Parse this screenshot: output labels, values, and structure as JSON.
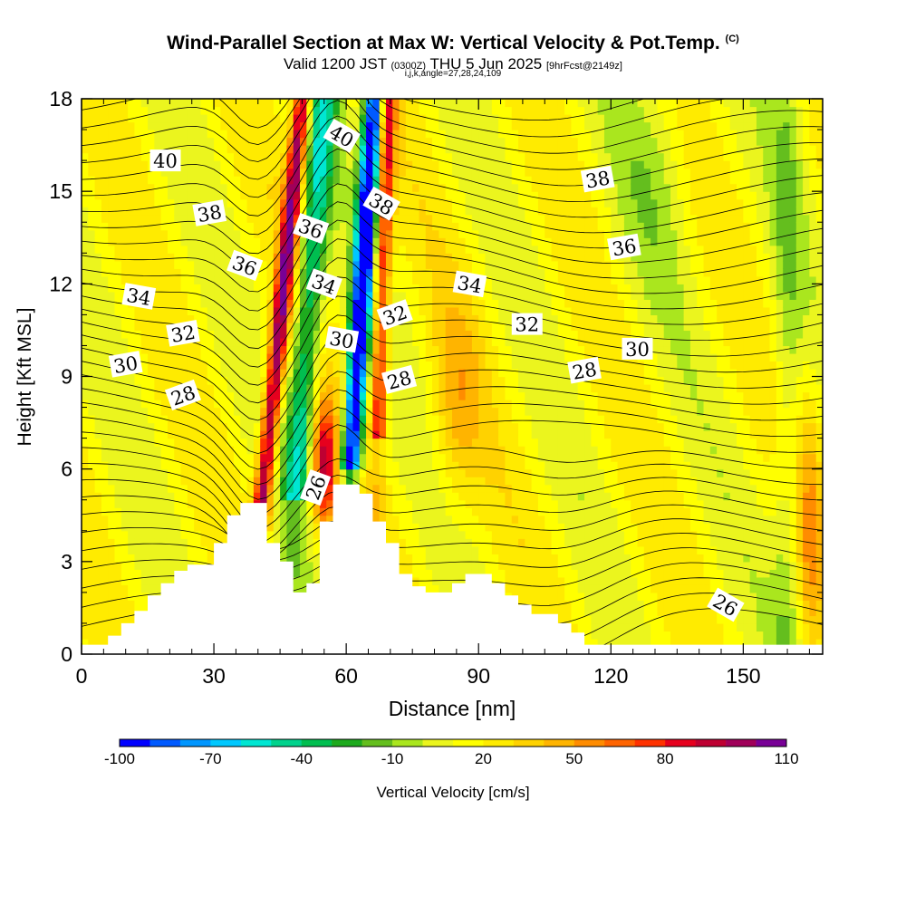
{
  "header": {
    "title": "Wind-Parallel Section at Max W: Vertical Velocity & Pot.Temp.",
    "copyright": "(C)",
    "valid_prefix": "Valid 1200 JST",
    "valid_utc": "(0300Z)",
    "valid_date": "THU 5 Jun 2025",
    "forecast": "[9hrFcst@2149z]",
    "indices": "i,j,k,angle=27,28,24,109"
  },
  "chart_data": {
    "type": "heatmap",
    "xlabel": "Distance [nm]",
    "ylabel": "Height [Kft MSL]",
    "xlim": [
      0,
      168
    ],
    "ylim": [
      0,
      18
    ],
    "x_ticks": [
      0,
      30,
      60,
      90,
      120,
      150
    ],
    "y_ticks": [
      0,
      3,
      6,
      9,
      12,
      15,
      18
    ],
    "colorbar": {
      "label": "Vertical Velocity [cm/s]",
      "tick_labels": [
        "-100",
        "-70",
        "-40",
        "-10",
        "20",
        "50",
        "80",
        "110"
      ],
      "colors": [
        "#0000ff",
        "#005aff",
        "#0096ff",
        "#00c8ff",
        "#00e6d2",
        "#00d28c",
        "#00be50",
        "#1eaa1e",
        "#64be1e",
        "#aae61e",
        "#ebf51e",
        "#ffff00",
        "#ffeb00",
        "#ffd200",
        "#ffb400",
        "#ff8c00",
        "#ff6400",
        "#ff3200",
        "#e6001e",
        "#be0032",
        "#a0005a",
        "#780096"
      ]
    },
    "terrain_profile": [
      [
        0,
        0.3
      ],
      [
        6,
        0.3
      ],
      [
        6,
        0.6
      ],
      [
        9,
        0.6
      ],
      [
        9,
        1.0
      ],
      [
        12,
        1.0
      ],
      [
        12,
        1.4
      ],
      [
        15,
        1.4
      ],
      [
        15,
        1.9
      ],
      [
        18,
        1.9
      ],
      [
        18,
        2.3
      ],
      [
        21,
        2.3
      ],
      [
        21,
        2.7
      ],
      [
        24,
        2.7
      ],
      [
        24,
        2.9
      ],
      [
        30,
        2.9
      ],
      [
        30,
        3.6
      ],
      [
        33,
        3.6
      ],
      [
        33,
        4.5
      ],
      [
        36,
        4.5
      ],
      [
        36,
        4.9
      ],
      [
        42,
        4.9
      ],
      [
        42,
        3.6
      ],
      [
        45,
        3.6
      ],
      [
        45,
        3.0
      ],
      [
        48,
        3.0
      ],
      [
        48,
        2.0
      ],
      [
        51,
        2.0
      ],
      [
        51,
        2.3
      ],
      [
        54,
        2.3
      ],
      [
        54,
        4.3
      ],
      [
        57,
        4.3
      ],
      [
        57,
        5.5
      ],
      [
        63,
        5.5
      ],
      [
        63,
        5.2
      ],
      [
        66,
        5.2
      ],
      [
        66,
        4.3
      ],
      [
        69,
        4.3
      ],
      [
        69,
        3.6
      ],
      [
        72,
        3.6
      ],
      [
        72,
        2.6
      ],
      [
        75,
        2.6
      ],
      [
        75,
        2.2
      ],
      [
        78,
        2.2
      ],
      [
        78,
        2.0
      ],
      [
        84,
        2.0
      ],
      [
        84,
        2.3
      ],
      [
        87,
        2.3
      ],
      [
        87,
        2.6
      ],
      [
        93,
        2.6
      ],
      [
        93,
        2.3
      ],
      [
        96,
        2.3
      ],
      [
        96,
        1.9
      ],
      [
        99,
        1.9
      ],
      [
        99,
        1.6
      ],
      [
        102,
        1.6
      ],
      [
        102,
        1.3
      ],
      [
        108,
        1.3
      ],
      [
        108,
        1.0
      ],
      [
        111,
        1.0
      ],
      [
        111,
        0.7
      ],
      [
        114,
        0.7
      ],
      [
        114,
        0.3
      ],
      [
        117,
        0.3
      ],
      [
        117,
        0.3
      ],
      [
        168,
        0.3
      ]
    ],
    "theta_contour_labels": [
      {
        "text": "40",
        "x": 19,
        "y": 16.0
      },
      {
        "text": "40",
        "x": 59,
        "y": 16.8
      },
      {
        "text": "38",
        "x": 29,
        "y": 14.3
      },
      {
        "text": "38",
        "x": 68,
        "y": 14.6
      },
      {
        "text": "38",
        "x": 117,
        "y": 15.4
      },
      {
        "text": "36",
        "x": 52,
        "y": 13.8
      },
      {
        "text": "36",
        "x": 37,
        "y": 12.6
      },
      {
        "text": "36",
        "x": 123,
        "y": 13.2
      },
      {
        "text": "34",
        "x": 13,
        "y": 11.6
      },
      {
        "text": "34",
        "x": 55,
        "y": 12.0
      },
      {
        "text": "34",
        "x": 88,
        "y": 12.0
      },
      {
        "text": "32",
        "x": 23,
        "y": 10.4
      },
      {
        "text": "32",
        "x": 71,
        "y": 11.0
      },
      {
        "text": "32",
        "x": 101,
        "y": 10.7
      },
      {
        "text": "30",
        "x": 10,
        "y": 9.4
      },
      {
        "text": "30",
        "x": 59,
        "y": 10.2
      },
      {
        "text": "30",
        "x": 126,
        "y": 9.9
      },
      {
        "text": "28",
        "x": 23,
        "y": 8.4
      },
      {
        "text": "28",
        "x": 72,
        "y": 8.9
      },
      {
        "text": "28",
        "x": 114,
        "y": 9.2
      },
      {
        "text": "26",
        "x": 53,
        "y": 5.4
      },
      {
        "text": "26",
        "x": 146,
        "y": 1.6
      }
    ]
  }
}
